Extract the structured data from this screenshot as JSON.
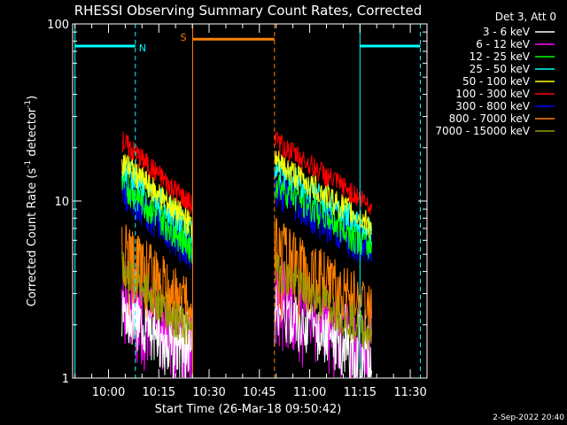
{
  "chart_data": {
    "type": "line",
    "title": "RHESSI Observing Summary Count Rates, Corrected",
    "ylabel_prefix": "Corrected Count Rate (s",
    "ylabel_exp1": "-1",
    "ylabel_mid": " detector",
    "ylabel_exp2": "-1",
    "ylabel_suffix": ")",
    "xlabel": "Start Time (26-Mar-18 09:50:42)",
    "y_scale": "log",
    "ylim": [
      1,
      100
    ],
    "y_ticks": [
      {
        "value": 1,
        "label": "1"
      },
      {
        "value": 10,
        "label": "10"
      },
      {
        "value": 100,
        "label": "100"
      }
    ],
    "x_range_minutes": [
      "09:50",
      "11:30"
    ],
    "x_ticks": [
      {
        "label": "10:00",
        "minute": 0
      },
      {
        "label": "10:15",
        "minute": 15
      },
      {
        "label": "10:30",
        "minute": 30
      },
      {
        "label": "10:45",
        "minute": 45
      },
      {
        "label": "11:00",
        "minute": 60
      },
      {
        "label": "11:15",
        "minute": 75
      },
      {
        "label": "11:30",
        "minute": 90
      }
    ],
    "legend_title": "Det 3, Att 0",
    "legend_placement": "right",
    "series": [
      {
        "name": "3 - 6 keV",
        "color": "#ffffff"
      },
      {
        "name": "6 - 12 keV",
        "color": "#ff00ff"
      },
      {
        "name": "12 - 25 keV",
        "color": "#00ff00"
      },
      {
        "name": "25 - 50 keV",
        "color": "#00ffff"
      },
      {
        "name": "50 - 100 keV",
        "color": "#ffff00"
      },
      {
        "name": "100 - 300 keV",
        "color": "#ff0000"
      },
      {
        "name": "300 - 800 keV",
        "color": "#0000ff"
      },
      {
        "name": "800 - 7000 keV",
        "color": "#ff8000"
      },
      {
        "name": "7000 - 15000 keV",
        "color": "#999900"
      }
    ],
    "segments": [
      {
        "start_minute": 4.0,
        "end_minute": 25.1
      },
      {
        "start_minute": 49.5,
        "end_minute": 78.5
      }
    ],
    "annotations": [
      {
        "label": "N",
        "color": "#00ffff",
        "start_minute": -10,
        "end_minute": 8.0,
        "level": 75
      },
      {
        "label": "S",
        "color": "#ff8000",
        "start_minute": 25.1,
        "end_minute": 49.5,
        "level": 82
      },
      {
        "label": "",
        "color": "#00ffff",
        "start_minute": 75.0,
        "end_minute": 93.0,
        "level": 75
      }
    ]
  },
  "footer_date": "2-Sep-2022 20:40"
}
